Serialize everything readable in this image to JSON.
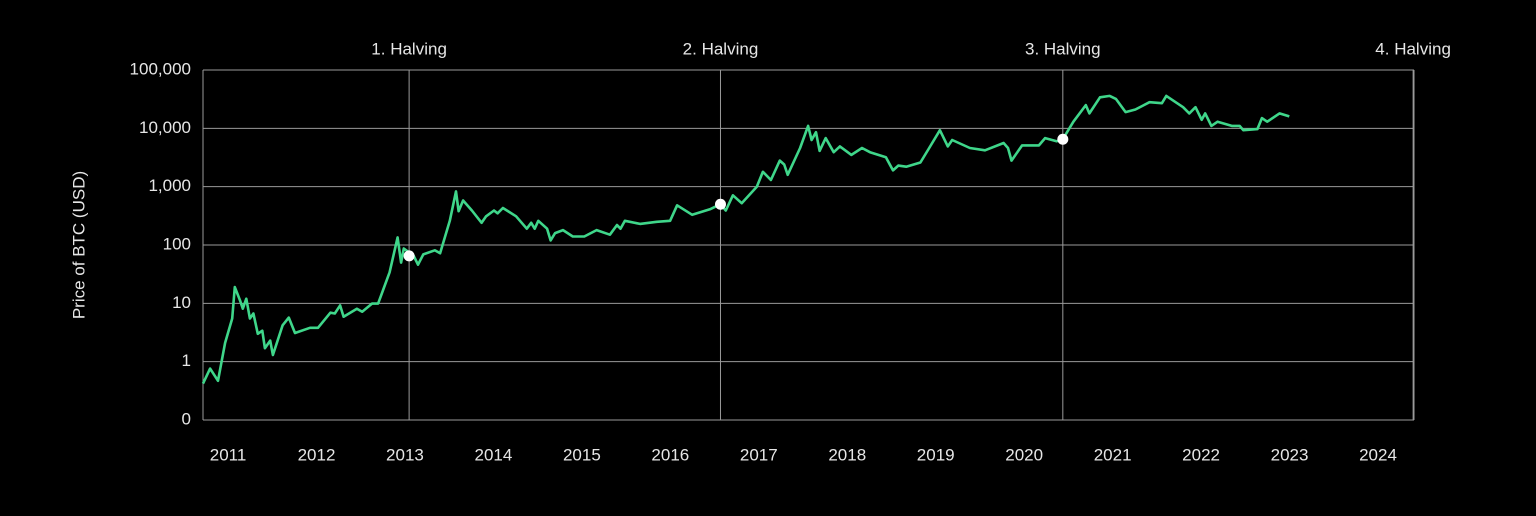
{
  "chart_data": {
    "type": "line",
    "ylabel": "Price of BTC (USD)",
    "log_scale": true,
    "grid": true,
    "xlim": [
      2010.57,
      2024.26
    ],
    "xticks": [
      2011,
      2012,
      2013,
      2014,
      2015,
      2016,
      2017,
      2018,
      2019,
      2020,
      2021,
      2022,
      2023,
      2024
    ],
    "ylim": [
      0.1,
      100000
    ],
    "yticks": [
      {
        "value": 0.1,
        "label": "0"
      },
      1,
      10,
      100,
      {
        "value": 1000,
        "label": "1,000"
      },
      {
        "value": 10000,
        "label": "10,000"
      },
      {
        "value": 100000,
        "label": "100,000"
      }
    ],
    "halvings": [
      {
        "label": "1. Halving",
        "x": 2012.9,
        "value": 65
      },
      {
        "label": "2. Halving",
        "x": 2016.42,
        "value": 500
      },
      {
        "label": "3. Halving",
        "x": 2020.29,
        "value": 6500
      },
      {
        "label": "4. Halving",
        "x": 2024.25
      }
    ],
    "halving_color": "#ffffff",
    "series": [
      {
        "color": "#3fd68a",
        "x": [
          2010.57,
          2010.65,
          2010.74,
          2010.82,
          2010.9,
          2010.93,
          2010.99,
          2011.02,
          2011.06,
          2011.1,
          2011.14,
          2011.19,
          2011.24,
          2011.27,
          2011.33,
          2011.36,
          2011.47,
          2011.54,
          2011.61,
          2011.78,
          2011.87,
          2012.01,
          2012.06,
          2012.12,
          2012.16,
          2012.31,
          2012.37,
          2012.48,
          2012.55,
          2012.68,
          2012.77,
          2012.81,
          2012.84,
          2012.95,
          2013.0,
          2013.06,
          2013.19,
          2013.25,
          2013.36,
          2013.43,
          2013.46,
          2013.51,
          2013.61,
          2013.72,
          2013.77,
          2013.86,
          2013.9,
          2013.96,
          2014.11,
          2014.23,
          2014.28,
          2014.32,
          2014.36,
          2014.46,
          2014.5,
          2014.55,
          2014.64,
          2014.75,
          2014.88,
          2015.02,
          2015.17,
          2015.25,
          2015.29,
          2015.34,
          2015.51,
          2015.7,
          2015.85,
          2015.93,
          2016.1,
          2016.3,
          2016.42,
          2016.48,
          2016.56,
          2016.66,
          2016.83,
          2016.9,
          2016.99,
          2017.09,
          2017.14,
          2017.18,
          2017.32,
          2017.41,
          2017.45,
          2017.5,
          2017.54,
          2017.61,
          2017.7,
          2017.77,
          2017.9,
          2018.02,
          2018.11,
          2018.29,
          2018.37,
          2018.43,
          2018.52,
          2018.68,
          2018.78,
          2018.9,
          2018.99,
          2019.04,
          2019.24,
          2019.41,
          2019.62,
          2019.67,
          2019.71,
          2019.83,
          2020.02,
          2020.09,
          2020.22,
          2020.29,
          2020.41,
          2020.55,
          2020.59,
          2020.71,
          2020.82,
          2020.89,
          2021.0,
          2021.11,
          2021.27,
          2021.41,
          2021.46,
          2021.65,
          2021.72,
          2021.79,
          2021.86,
          2021.9,
          2021.97,
          2022.04,
          2022.2,
          2022.29,
          2022.33,
          2022.49,
          2022.54,
          2022.6,
          2022.74,
          2022.85
        ],
        "values": [
          0.42,
          0.76,
          0.47,
          2.1,
          5.5,
          19,
          11,
          8.1,
          12,
          5.5,
          6.7,
          3.0,
          3.4,
          1.7,
          2.3,
          1.3,
          4.2,
          5.7,
          3.1,
          3.8,
          3.8,
          6.9,
          6.7,
          9.2,
          5.9,
          8.1,
          7.2,
          9.9,
          9.9,
          34,
          135,
          50,
          87,
          66,
          46,
          69,
          81,
          72,
          260,
          830,
          380,
          580,
          390,
          240,
          310,
          390,
          350,
          430,
          310,
          190,
          240,
          190,
          260,
          190,
          120,
          160,
          180,
          140,
          140,
          180,
          150,
          220,
          190,
          260,
          230,
          250,
          260,
          480,
          330,
          410,
          500,
          390,
          710,
          520,
          1000,
          1800,
          1300,
          2800,
          2400,
          1600,
          4600,
          11000,
          6300,
          8600,
          4100,
          6800,
          3900,
          4900,
          3500,
          4600,
          3900,
          3200,
          1900,
          2300,
          2200,
          2600,
          4600,
          9300,
          4900,
          6300,
          4600,
          4200,
          5600,
          4600,
          2800,
          5100,
          5100,
          6800,
          6000,
          6500,
          13000,
          25000,
          18000,
          34000,
          36000,
          32000,
          19000,
          21000,
          28000,
          27000,
          36000,
          23000,
          18000,
          23000,
          14000,
          18000,
          11000,
          13000,
          11000,
          11000,
          9300,
          9700,
          15000,
          13000,
          18000,
          16000
        ]
      }
    ]
  }
}
